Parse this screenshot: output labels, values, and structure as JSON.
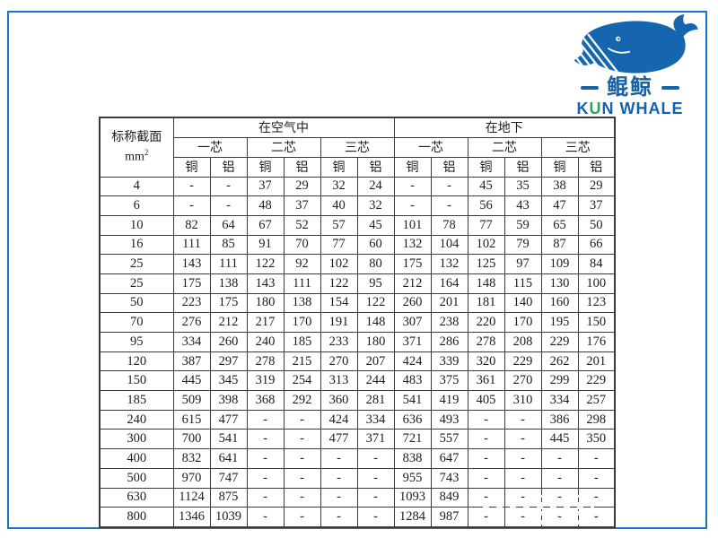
{
  "colors": {
    "frame_blue": "#1a74c4",
    "table_line": "#3b3b3b",
    "table_text": "#1d1d1d",
    "logo_blue": "#1462a9",
    "logo_green": "#2fa355",
    "whale_blue": "#1666af"
  },
  "logo": {
    "chinese_name": "鲲鲸",
    "english_k": "K",
    "english_u": "U",
    "english_rest": "N WHALE"
  },
  "table": {
    "corner": {
      "line1": "标称截面",
      "unit_base": "mm",
      "unit_sup": "2"
    },
    "groups": [
      "在空气中",
      "在地下"
    ],
    "cores": [
      "一芯",
      "二芯",
      "三芯",
      "一芯",
      "二芯",
      "三芯"
    ],
    "materials": [
      "铜",
      "铝",
      "铜",
      "铝",
      "铜",
      "铝",
      "铜",
      "铝",
      "铜",
      "铝",
      "铜",
      "铝"
    ],
    "rows": [
      {
        "size": "4",
        "values": [
          "-",
          "-",
          "37",
          "29",
          "32",
          "24",
          "-",
          "-",
          "45",
          "35",
          "38",
          "29"
        ]
      },
      {
        "size": "6",
        "values": [
          "-",
          "-",
          "48",
          "37",
          "40",
          "32",
          "-",
          "-",
          "56",
          "43",
          "47",
          "37"
        ]
      },
      {
        "size": "10",
        "values": [
          "82",
          "64",
          "67",
          "52",
          "57",
          "45",
          "101",
          "78",
          "77",
          "59",
          "65",
          "50"
        ]
      },
      {
        "size": "16",
        "values": [
          "111",
          "85",
          "91",
          "70",
          "77",
          "60",
          "132",
          "104",
          "102",
          "79",
          "87",
          "66"
        ]
      },
      {
        "size": "25",
        "values": [
          "143",
          "111",
          "122",
          "92",
          "102",
          "80",
          "175",
          "132",
          "125",
          "97",
          "109",
          "84"
        ]
      },
      {
        "size": "25",
        "values": [
          "175",
          "138",
          "143",
          "111",
          "122",
          "95",
          "212",
          "164",
          "148",
          "115",
          "130",
          "100"
        ]
      },
      {
        "size": "50",
        "values": [
          "223",
          "175",
          "180",
          "138",
          "154",
          "122",
          "260",
          "201",
          "181",
          "140",
          "160",
          "123"
        ]
      },
      {
        "size": "70",
        "values": [
          "276",
          "212",
          "217",
          "170",
          "191",
          "148",
          "307",
          "238",
          "220",
          "170",
          "195",
          "150"
        ]
      },
      {
        "size": "95",
        "values": [
          "334",
          "260",
          "240",
          "185",
          "233",
          "180",
          "371",
          "286",
          "278",
          "208",
          "229",
          "176"
        ]
      },
      {
        "size": "120",
        "values": [
          "387",
          "297",
          "278",
          "215",
          "270",
          "207",
          "424",
          "339",
          "320",
          "229",
          "262",
          "201"
        ]
      },
      {
        "size": "150",
        "values": [
          "445",
          "345",
          "319",
          "254",
          "313",
          "244",
          "483",
          "375",
          "361",
          "270",
          "299",
          "229"
        ]
      },
      {
        "size": "185",
        "values": [
          "509",
          "398",
          "368",
          "292",
          "360",
          "281",
          "541",
          "419",
          "405",
          "310",
          "334",
          "257"
        ]
      },
      {
        "size": "240",
        "values": [
          "615",
          "477",
          "-",
          "-",
          "424",
          "334",
          "636",
          "493",
          "-",
          "-",
          "386",
          "298"
        ]
      },
      {
        "size": "300",
        "values": [
          "700",
          "541",
          "-",
          "-",
          "477",
          "371",
          "721",
          "557",
          "-",
          "-",
          "445",
          "350"
        ]
      },
      {
        "size": "400",
        "values": [
          "832",
          "641",
          "-",
          "-",
          "-",
          "-",
          "838",
          "647",
          "-",
          "-",
          "-",
          "-"
        ]
      },
      {
        "size": "500",
        "values": [
          "970",
          "747",
          "-",
          "-",
          "-",
          "-",
          "955",
          "743",
          "-",
          "-",
          "-",
          "-"
        ]
      },
      {
        "size": "630",
        "values": [
          "1124",
          "875",
          "-",
          "-",
          "-",
          "-",
          "1093",
          "849",
          "-",
          "-",
          "-",
          "-"
        ]
      },
      {
        "size": "800",
        "values": [
          "1346",
          "1039",
          "-",
          "-",
          "-",
          "-",
          "1284",
          "987",
          "-",
          "-",
          "-",
          "-"
        ]
      }
    ]
  }
}
